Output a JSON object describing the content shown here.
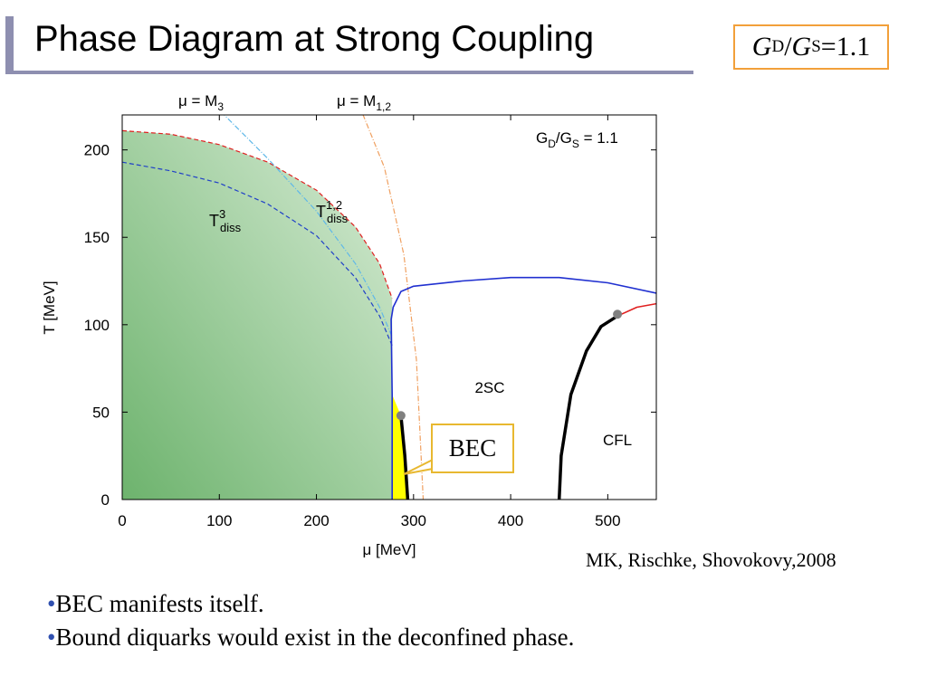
{
  "slide": {
    "title": "Phase Diagram at Strong Coupling",
    "ratio_label": {
      "G1": "G",
      "D": "D",
      "slash": "/",
      "G2": "G",
      "S": "S",
      "value": "=1.1"
    },
    "citation": "MK, Rischke, Shovokovy,2008",
    "bullets": [
      {
        "dot": "•",
        "text": "BEC manifests itself."
      },
      {
        "dot": "•",
        "text": "Bound diquarks would exist in the deconfined phase."
      }
    ],
    "bec_callout": "BEC"
  },
  "chart_data": {
    "type": "line",
    "title": "",
    "inset_label": {
      "G1": "G",
      "D": "D",
      "G2": "G",
      "S": "S",
      "value": " = 1.1"
    },
    "xlabel": "μ [MeV]",
    "ylabel": "T [MeV]",
    "xlim": [
      0,
      550
    ],
    "ylim": [
      0,
      220
    ],
    "xticks": [
      0,
      100,
      200,
      300,
      400,
      500
    ],
    "yticks": [
      0,
      50,
      100,
      150,
      200
    ],
    "top_labels": {
      "m3": {
        "mu": "μ = M",
        "sub": "3"
      },
      "m12": {
        "mu": "μ = M",
        "sub": "1,2"
      }
    },
    "region_labels": {
      "t3": {
        "base": "T",
        "sup": "3",
        "sub": "diss"
      },
      "t12": {
        "base": "T",
        "sup": "1,2",
        "sub": "diss"
      },
      "twosc": "2SC",
      "cfl": "CFL"
    },
    "series": [
      {
        "key": "t12",
        "color": "#e02020",
        "style": "dashed",
        "points": [
          [
            0,
            211
          ],
          [
            50,
            209
          ],
          [
            100,
            203
          ],
          [
            150,
            193
          ],
          [
            200,
            177
          ],
          [
            240,
            156
          ],
          [
            265,
            135
          ],
          [
            278,
            115
          ]
        ]
      },
      {
        "key": "t3",
        "color": "#2040c8",
        "style": "dashed",
        "points": [
          [
            0,
            193
          ],
          [
            50,
            188
          ],
          [
            100,
            181
          ],
          [
            150,
            169
          ],
          [
            200,
            151
          ],
          [
            240,
            127
          ],
          [
            265,
            105
          ],
          [
            278,
            88
          ]
        ]
      },
      {
        "key": "m3",
        "color": "#60b8e8",
        "style": "dashdot",
        "points": [
          [
            80,
            234
          ],
          [
            150,
            195
          ],
          [
            200,
            165
          ],
          [
            240,
            135
          ],
          [
            265,
            110
          ],
          [
            278,
            93
          ]
        ]
      },
      {
        "key": "m12",
        "color": "#f0a060",
        "style": "dashdot",
        "points": [
          [
            240,
            231
          ],
          [
            270,
            190
          ],
          [
            290,
            140
          ],
          [
            303,
            80
          ],
          [
            310,
            0
          ]
        ]
      },
      {
        "key": "2sc_boundary",
        "color": "#2030d0",
        "style": "solid",
        "points": [
          [
            278,
            0
          ],
          [
            278,
            60
          ],
          [
            277,
            103
          ],
          [
            279,
            110
          ],
          [
            287,
            119
          ],
          [
            300,
            122
          ],
          [
            350,
            125
          ],
          [
            400,
            127
          ],
          [
            450,
            127
          ],
          [
            500,
            124
          ],
          [
            550,
            118
          ]
        ]
      },
      {
        "key": "cfl_first_order",
        "color": "#000000",
        "style": "solid-thick",
        "points": [
          [
            450,
            0
          ],
          [
            452,
            25
          ],
          [
            462,
            60
          ],
          [
            478,
            85
          ],
          [
            493,
            99
          ],
          [
            510,
            105
          ]
        ]
      },
      {
        "key": "cfl_second_order",
        "color": "#e02020",
        "style": "solid",
        "points": [
          [
            510,
            105
          ],
          [
            530,
            110
          ],
          [
            550,
            112
          ]
        ]
      },
      {
        "key": "bec_line",
        "color": "#000000",
        "style": "solid-thick",
        "points": [
          [
            287,
            48
          ],
          [
            291,
            25
          ],
          [
            294,
            0
          ]
        ]
      }
    ],
    "critical_points": [
      [
        287,
        48
      ],
      [
        510,
        106
      ]
    ],
    "regions": {
      "hadronic": {
        "color_from": "#6db36d",
        "color_to": "#d8ecd6"
      },
      "bec": {
        "color": "#ffff00"
      }
    }
  }
}
